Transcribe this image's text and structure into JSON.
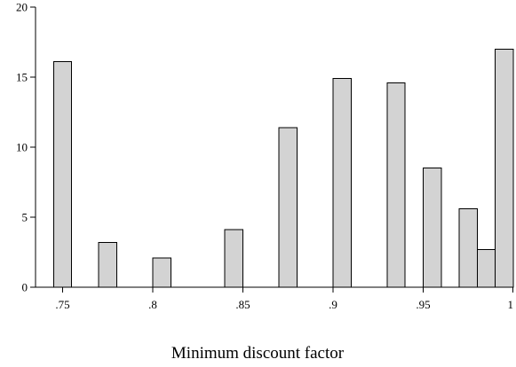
{
  "chart_data": {
    "type": "bar",
    "title": "",
    "xlabel": "Minimum discount factor",
    "ylabel": "",
    "xlim": [
      0.735,
      1.0
    ],
    "ylim": [
      0,
      20
    ],
    "bin_width": 0.01,
    "grid": false,
    "x_ticks": [
      {
        "value": 0.75,
        "label": ".75"
      },
      {
        "value": 0.8,
        "label": ".8"
      },
      {
        "value": 0.85,
        "label": ".85"
      },
      {
        "value": 0.9,
        "label": ".9"
      },
      {
        "value": 0.95,
        "label": ".95"
      },
      {
        "value": 1.0,
        "label": "1"
      }
    ],
    "y_ticks": [
      {
        "value": 0,
        "label": "0"
      },
      {
        "value": 5,
        "label": "5"
      },
      {
        "value": 10,
        "label": "10"
      },
      {
        "value": 15,
        "label": "15"
      },
      {
        "value": 20,
        "label": "20"
      }
    ],
    "bars": [
      {
        "x": 0.75,
        "value": 16.1
      },
      {
        "x": 0.775,
        "value": 3.2
      },
      {
        "x": 0.805,
        "value": 2.1
      },
      {
        "x": 0.845,
        "value": 4.1
      },
      {
        "x": 0.875,
        "value": 11.4
      },
      {
        "x": 0.905,
        "value": 14.9
      },
      {
        "x": 0.935,
        "value": 14.6
      },
      {
        "x": 0.955,
        "value": 8.5
      },
      {
        "x": 0.975,
        "value": 5.6
      },
      {
        "x": 0.985,
        "value": 2.7
      },
      {
        "x": 0.995,
        "value": 17.0
      }
    ],
    "colors": {
      "bar_fill": "#d3d3d3",
      "bar_edge": "#000000",
      "axis": "#000000"
    }
  }
}
